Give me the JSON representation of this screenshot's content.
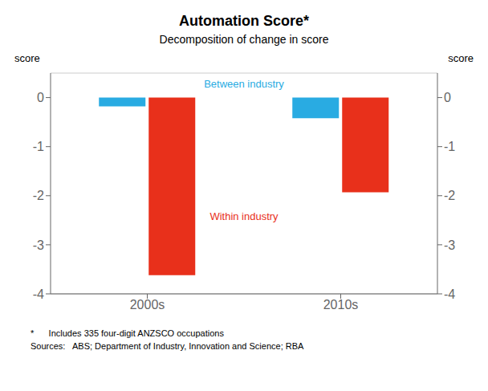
{
  "chart_data": {
    "type": "bar",
    "title": "Automation Score*",
    "subtitle": "Decomposition of change in score",
    "ylabel": "score",
    "y2label": "score",
    "categories": [
      "2000s",
      "2010s"
    ],
    "series": [
      {
        "name": "Between industry",
        "color": "#29ABE2",
        "values": [
          -0.18,
          -0.42
        ]
      },
      {
        "name": "Within industry",
        "color": "#E8301B",
        "values": [
          -3.62,
          -1.93
        ]
      }
    ],
    "ylim": [
      -4,
      0.5
    ],
    "yticks": [
      0,
      -1,
      -2,
      -3,
      -4
    ],
    "y2lim": [
      -4,
      0.5
    ],
    "y2ticks": [
      0,
      -1,
      -2,
      -3,
      -4
    ],
    "grid": true,
    "footnotes": [
      "*      Includes 335 four-digit ANZSCO occupations",
      "Sources:   ABS; Department of Industry, Innovation and Science; RBA"
    ]
  }
}
